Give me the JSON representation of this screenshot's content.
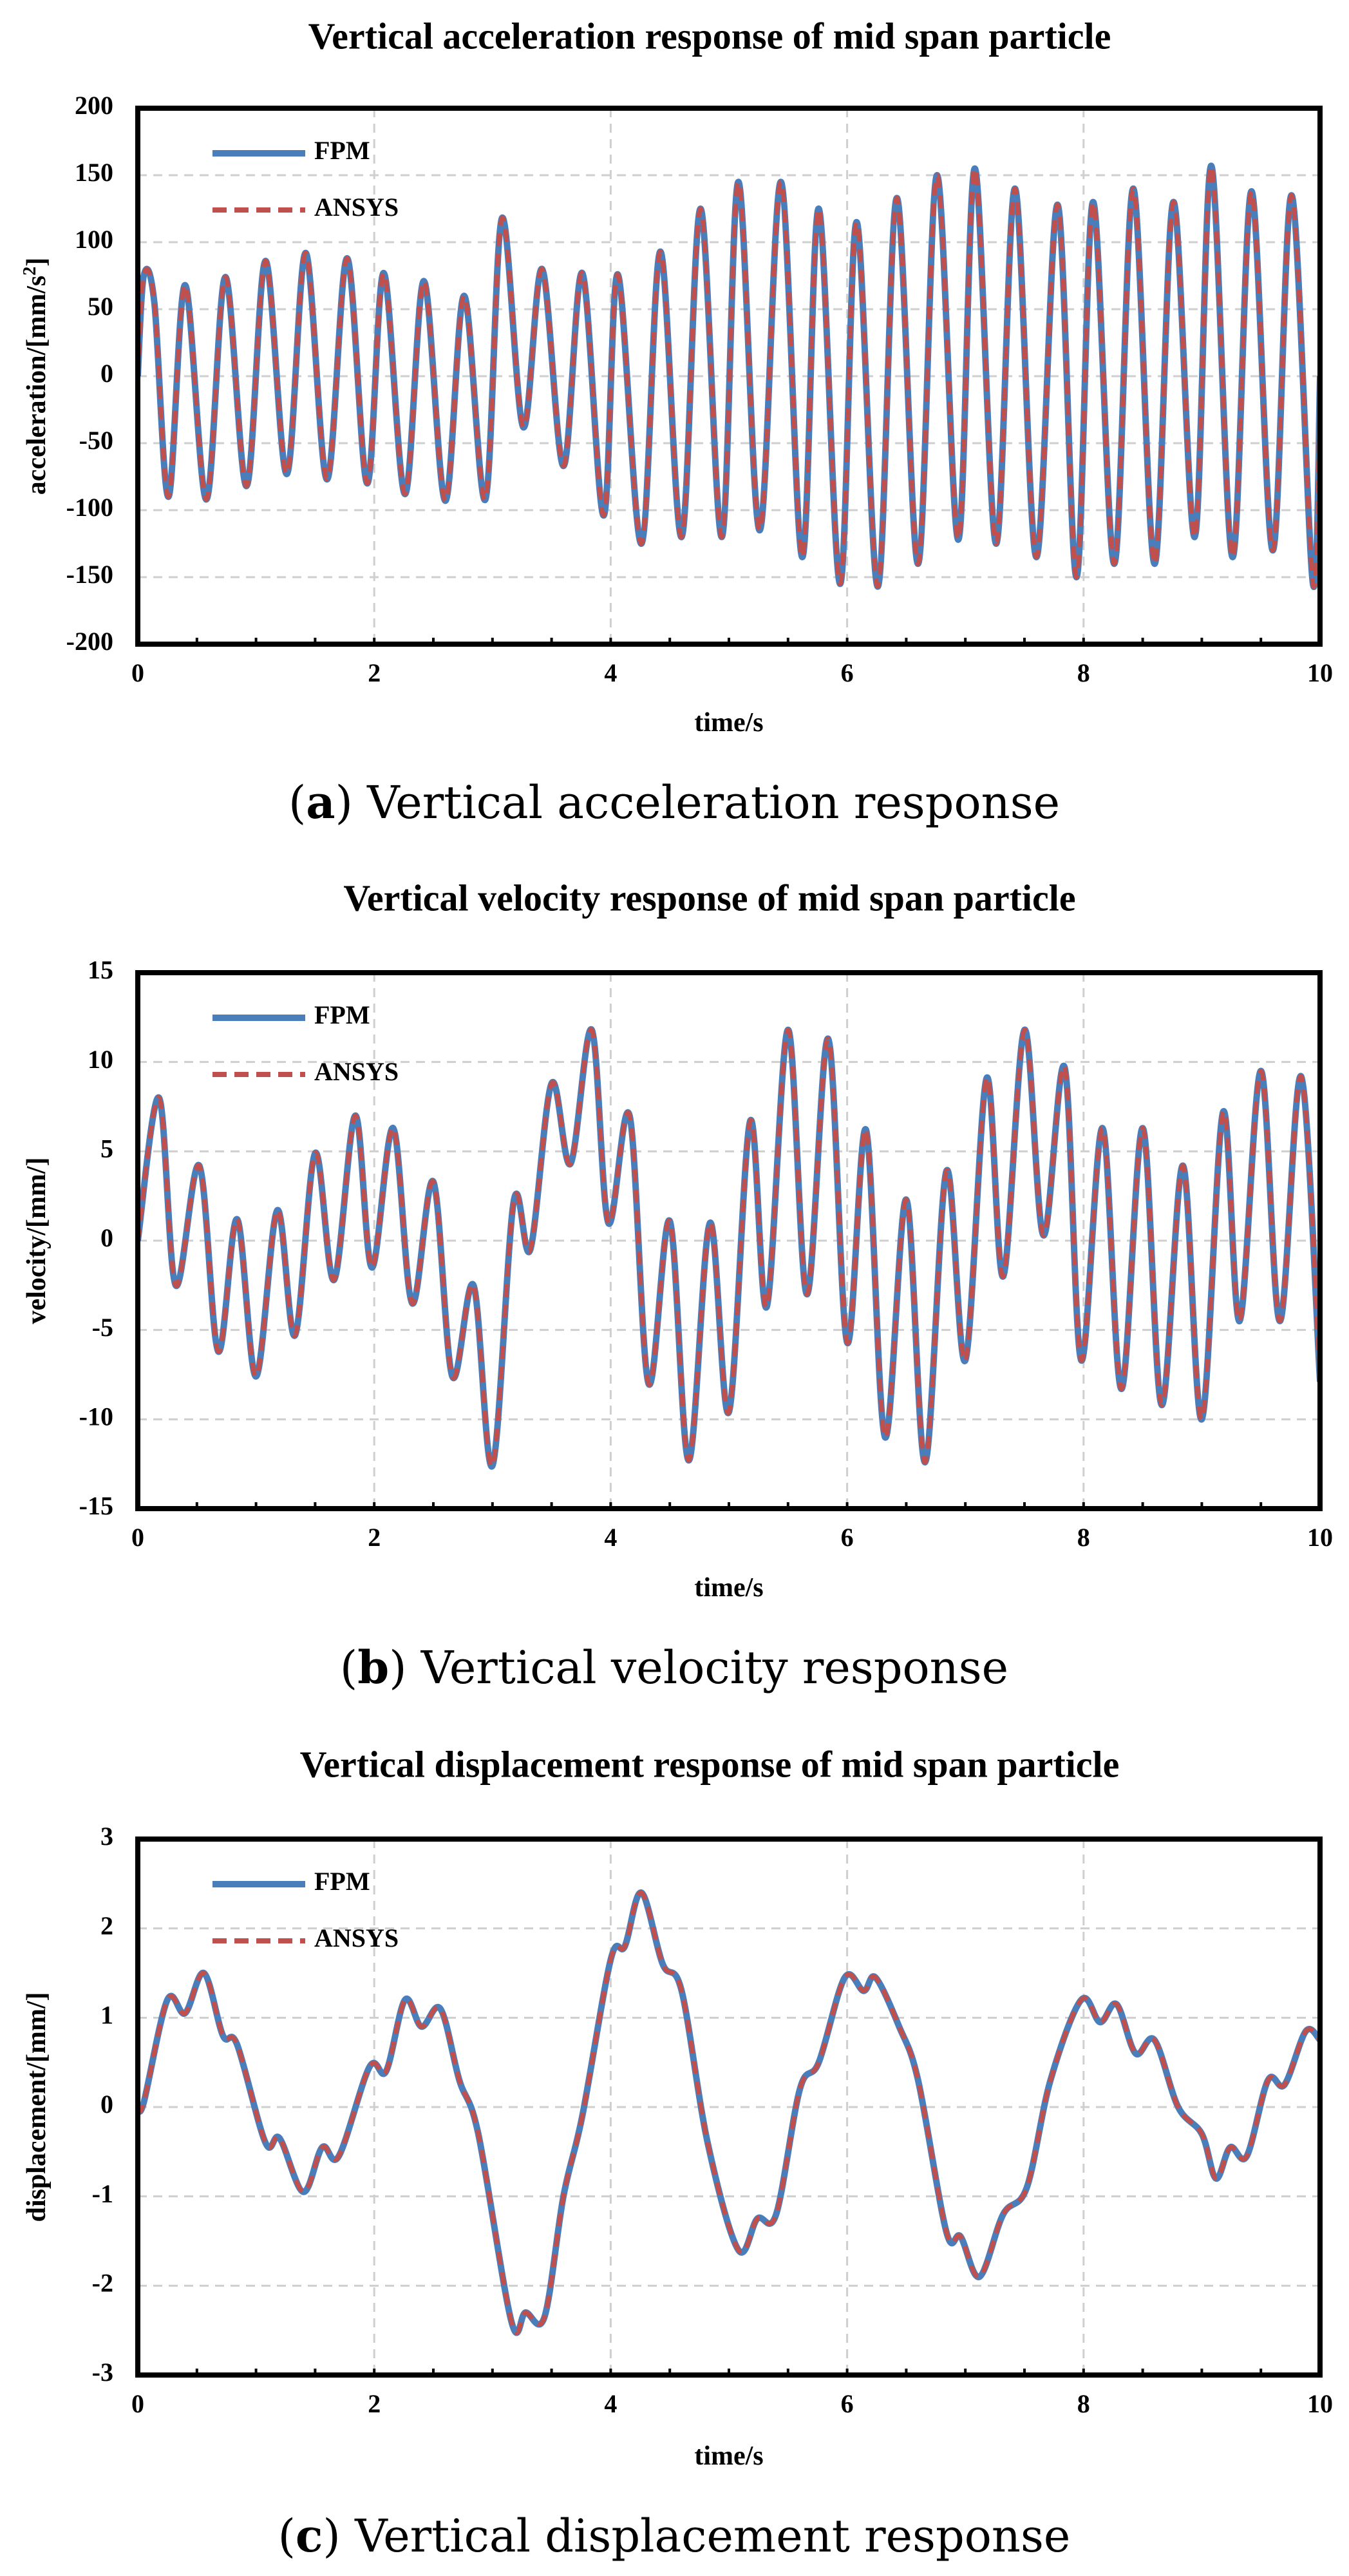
{
  "chart_data": [
    {
      "type": "line",
      "title": "Vertical acceleration response of mid span particle",
      "xlabel": "time/s",
      "ylabel": "acceleration/[mm/s",
      "ylabel_sup": "2",
      "ylabel_end": "]",
      "xlim": [
        0,
        10
      ],
      "ylim": [
        -200,
        200
      ],
      "xticks": [
        0,
        2,
        4,
        6,
        8,
        10
      ],
      "yticks": [
        200,
        150,
        100,
        50,
        0,
        -50,
        -100,
        -150,
        -200
      ],
      "grid": true,
      "legend_position": "top-left",
      "caption_letter": "a",
      "caption_text": " Vertical acceleration response",
      "series": [
        {
          "name": "FPM",
          "color": "#4a7ebb",
          "style": "solid"
        },
        {
          "name": "ANSYS",
          "color": "#c0504d",
          "style": "dashed"
        }
      ],
      "x": [
        0,
        0.05,
        0.14,
        0.26,
        0.4,
        0.58,
        0.74,
        0.92,
        1.08,
        1.26,
        1.42,
        1.6,
        1.77,
        1.94,
        2.08,
        2.26,
        2.42,
        2.6,
        2.76,
        2.94,
        3.08,
        3.26,
        3.42,
        3.6,
        3.76,
        3.94,
        4.06,
        4.26,
        4.42,
        4.6,
        4.76,
        4.94,
        5.08,
        5.26,
        5.44,
        5.62,
        5.76,
        5.94,
        6.08,
        6.26,
        6.42,
        6.6,
        6.76,
        6.94,
        7.08,
        7.26,
        7.42,
        7.6,
        7.78,
        7.94,
        8.08,
        8.26,
        8.42,
        8.6,
        8.76,
        8.94,
        9.08,
        9.26,
        9.42,
        9.6,
        9.76,
        9.94,
        10.0
      ],
      "values": [
        0,
        75,
        55,
        -90,
        68,
        -92,
        74,
        -82,
        86,
        -73,
        92,
        -77,
        88,
        -80,
        77,
        -88,
        71,
        -93,
        60,
        -92,
        118,
        -38,
        80,
        -67,
        77,
        -104,
        76,
        -125,
        93,
        -120,
        125,
        -120,
        145,
        -115,
        145,
        -135,
        125,
        -155,
        115,
        -157,
        133,
        -140,
        150,
        -122,
        155,
        -125,
        140,
        -135,
        128,
        -150,
        130,
        -140,
        140,
        -140,
        130,
        -120,
        157,
        -135,
        138,
        -130,
        135,
        -155,
        0
      ]
    },
    {
      "type": "line",
      "title": "Vertical velocity response of mid span particle",
      "xlabel": "time/s",
      "ylabel": "velocity/[mm/]",
      "xlim": [
        0,
        10
      ],
      "ylim": [
        -15,
        15
      ],
      "xticks": [
        0,
        2,
        4,
        6,
        8,
        10
      ],
      "yticks": [
        15,
        10,
        5,
        0,
        -5,
        -10,
        -15
      ],
      "grid": true,
      "legend_position": "top-left",
      "caption_letter": "b",
      "caption_text": " Vertical velocity response",
      "series": [
        {
          "name": "FPM",
          "color": "#4a7ebb",
          "style": "solid"
        },
        {
          "name": "ANSYS",
          "color": "#c0504d",
          "style": "dashed"
        }
      ],
      "x": [
        0,
        0.18,
        0.32,
        0.52,
        0.68,
        0.84,
        1.0,
        1.18,
        1.33,
        1.5,
        1.66,
        1.84,
        1.98,
        2.16,
        2.32,
        2.5,
        2.66,
        2.84,
        3.0,
        3.18,
        3.32,
        3.5,
        3.66,
        3.84,
        3.98,
        4.16,
        4.32,
        4.5,
        4.66,
        4.84,
        5.0,
        5.18,
        5.32,
        5.5,
        5.66,
        5.84,
        6.0,
        6.16,
        6.32,
        6.5,
        6.66,
        6.84,
        7.0,
        7.18,
        7.32,
        7.5,
        7.66,
        7.84,
        7.98,
        8.16,
        8.32,
        8.5,
        8.66,
        8.84,
        9.0,
        9.18,
        9.32,
        9.5,
        9.66,
        9.84,
        10.0
      ],
      "values": [
        0,
        8,
        -2.5,
        4.2,
        -6.2,
        1.2,
        -7.6,
        1.7,
        -5.3,
        4.9,
        -2.2,
        7.0,
        -1.5,
        6.3,
        -3.5,
        3.3,
        -7.6,
        -2.5,
        -12.6,
        2.2,
        -0.5,
        8.8,
        4.3,
        11.8,
        1.0,
        7.0,
        -8.0,
        1.1,
        -12.3,
        1.0,
        -9.6,
        6.7,
        -3.7,
        11.8,
        -3.0,
        11.3,
        -5.7,
        6.2,
        -11.0,
        2.3,
        -12.4,
        3.9,
        -6.7,
        9.1,
        -2.0,
        11.8,
        0.3,
        9.7,
        -6.7,
        6.3,
        -8.3,
        6.3,
        -9.2,
        4.2,
        -10.0,
        7.2,
        -4.5,
        9.5,
        -4.5,
        9.2,
        -7.9
      ]
    },
    {
      "type": "line",
      "title": "Vertical displacement response of mid span particle",
      "xlabel": "time/s",
      "ylabel": "displacement/[mm/]",
      "xlim": [
        0,
        10
      ],
      "ylim": [
        -3,
        3
      ],
      "xticks": [
        0,
        2,
        4,
        6,
        8,
        10
      ],
      "yticks": [
        3,
        2,
        1,
        0,
        -1,
        -2,
        -3
      ],
      "grid": true,
      "legend_position": "top-left",
      "caption_letter": "c",
      "caption_text": " Vertical displacement response",
      "series": [
        {
          "name": "FPM",
          "color": "#4a7ebb",
          "style": "solid"
        },
        {
          "name": "ANSYS",
          "color": "#c0504d",
          "style": "dashed"
        }
      ],
      "x": [
        0,
        0.05,
        0.25,
        0.4,
        0.56,
        0.72,
        0.84,
        1.08,
        1.2,
        1.4,
        1.56,
        1.7,
        1.96,
        2.1,
        2.26,
        2.4,
        2.56,
        2.72,
        2.88,
        3.16,
        3.28,
        3.44,
        3.6,
        3.76,
        4.0,
        4.12,
        4.26,
        4.44,
        4.6,
        4.82,
        5.08,
        5.24,
        5.4,
        5.6,
        5.76,
        5.98,
        6.14,
        6.24,
        6.44,
        6.6,
        6.84,
        6.96,
        7.12,
        7.32,
        7.52,
        7.72,
        7.98,
        8.14,
        8.28,
        8.44,
        8.6,
        8.8,
        9.0,
        9.12,
        9.24,
        9.38,
        9.56,
        9.7,
        9.88,
        10.0
      ],
      "values": [
        0,
        0.05,
        1.2,
        1.05,
        1.5,
        0.8,
        0.7,
        -0.4,
        -0.35,
        -0.95,
        -0.45,
        -0.55,
        0.45,
        0.4,
        1.2,
        0.9,
        1.1,
        0.3,
        -0.3,
        -2.4,
        -2.3,
        -2.35,
        -1.0,
        -0.1,
        1.65,
        1.8,
        2.4,
        1.6,
        1.3,
        -0.4,
        -1.6,
        -1.25,
        -1.2,
        0.2,
        0.5,
        1.45,
        1.3,
        1.45,
        0.9,
        0.3,
        -1.4,
        -1.45,
        -1.9,
        -1.2,
        -0.9,
        0.3,
        1.2,
        0.95,
        1.15,
        0.6,
        0.75,
        0.0,
        -0.3,
        -0.8,
        -0.45,
        -0.55,
        0.3,
        0.25,
        0.85,
        0.75
      ]
    }
  ]
}
